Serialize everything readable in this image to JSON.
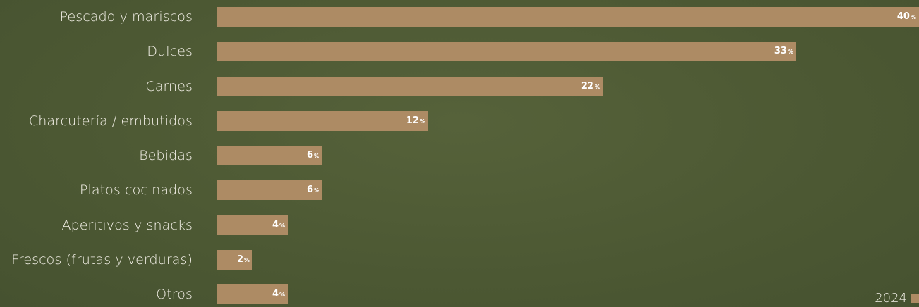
{
  "chart_data": {
    "type": "bar",
    "orientation": "horizontal",
    "categories": [
      "Pescado y mariscos",
      "Dulces",
      "Carnes",
      "Charcutería / embutidos",
      "Bebidas",
      "Platos cocinados",
      "Aperitivos y snacks",
      "Frescos (frutas y verduras)",
      "Otros"
    ],
    "series": [
      {
        "name": "2024",
        "values": [
          40,
          33,
          22,
          12,
          6,
          6,
          4,
          2,
          4
        ]
      }
    ],
    "value_suffix": "%",
    "xlim": [
      0,
      40
    ],
    "grid": false,
    "legend": "bottom-right",
    "colors": {
      "bar": "#ad8b64",
      "background": "#4f5c36",
      "text": "#f2efe6",
      "value_text": "#ffffff"
    }
  }
}
